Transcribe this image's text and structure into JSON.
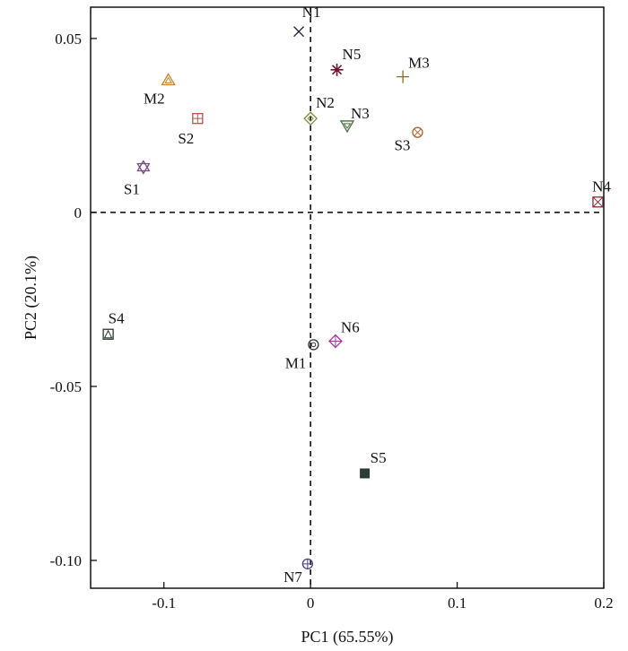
{
  "chart_data": {
    "type": "scatter",
    "title": "",
    "xlabel": "PC1 (65.55%)",
    "ylabel": "PC2 (20.1%)",
    "xlim": [
      -0.15,
      0.2
    ],
    "ylim": [
      -0.108,
      0.059
    ],
    "xticks": [
      {
        "value": -0.1,
        "label": "-0.1"
      },
      {
        "value": 0,
        "label": "0"
      },
      {
        "value": 0.1,
        "label": "0.1"
      },
      {
        "value": 0.2,
        "label": "0.2"
      }
    ],
    "yticks": [
      {
        "value": 0.05,
        "label": "0.05"
      },
      {
        "value": 0,
        "label": "0"
      },
      {
        "value": -0.05,
        "label": "-0.05"
      },
      {
        "value": -0.1,
        "label": "-0.10"
      }
    ],
    "reference_lines": {
      "x": 0,
      "y": 0,
      "style": "dashed"
    },
    "grid": false,
    "points": [
      {
        "label": "N1",
        "x": -0.008,
        "y": 0.052,
        "marker": "x",
        "color": "#1a1a2e"
      },
      {
        "label": "N5",
        "x": 0.018,
        "y": 0.041,
        "marker": "asterisk",
        "color": "#6b1530"
      },
      {
        "label": "M3",
        "x": 0.063,
        "y": 0.039,
        "marker": "plus",
        "color": "#8a6a2a"
      },
      {
        "label": "M2",
        "x": -0.097,
        "y": 0.038,
        "marker": "triangle",
        "color": "#c8822a"
      },
      {
        "label": "S2",
        "x": -0.077,
        "y": 0.027,
        "marker": "square-plus",
        "color": "#c0504d"
      },
      {
        "label": "N2",
        "x": 0.0,
        "y": 0.027,
        "marker": "diamond",
        "color": "#7a8a3a"
      },
      {
        "label": "N3",
        "x": 0.025,
        "y": 0.025,
        "marker": "triangle-down",
        "color": "#4a6a3a"
      },
      {
        "label": "S3",
        "x": 0.073,
        "y": 0.023,
        "marker": "circle-x",
        "color": "#b0602a"
      },
      {
        "label": "S1",
        "x": -0.114,
        "y": 0.013,
        "marker": "star",
        "color": "#7a4a8a"
      },
      {
        "label": "N4",
        "x": 0.196,
        "y": 0.003,
        "marker": "square-x",
        "color": "#8a2a3a"
      },
      {
        "label": "S4",
        "x": -0.138,
        "y": -0.035,
        "marker": "square-triangle",
        "color": "#2a3a2a"
      },
      {
        "label": "N6",
        "x": 0.017,
        "y": -0.037,
        "marker": "diamond-plus",
        "color": "#a03a9a"
      },
      {
        "label": "M1",
        "x": 0.002,
        "y": -0.038,
        "marker": "circle-dot",
        "color": "#333333"
      },
      {
        "label": "S5",
        "x": 0.037,
        "y": -0.075,
        "marker": "filled-square",
        "color": "#2d3d35"
      },
      {
        "label": "N7",
        "x": -0.002,
        "y": -0.101,
        "marker": "circle-plus",
        "color": "#4a3a8a"
      }
    ]
  }
}
